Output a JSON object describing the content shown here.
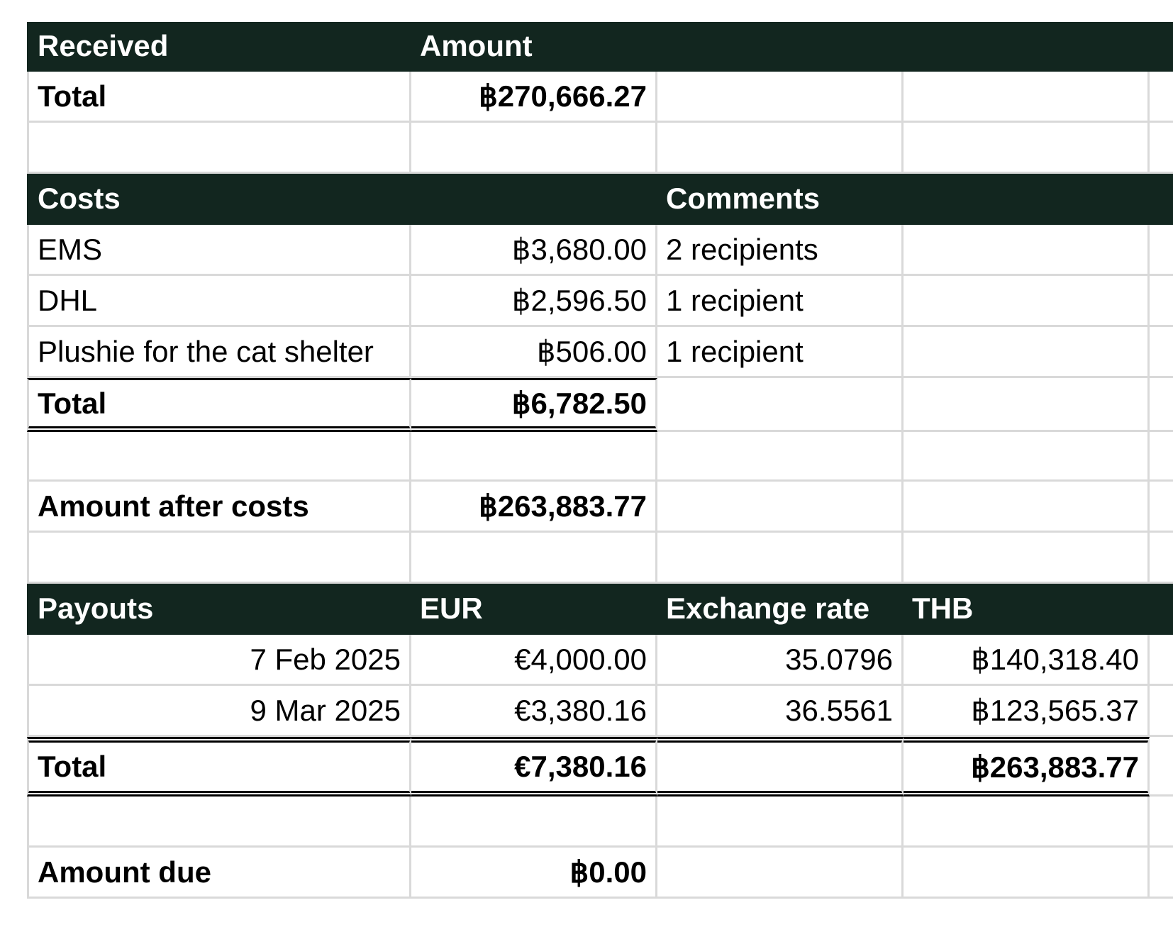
{
  "theme": {
    "header_bg": "#12261f",
    "grid": "#d9d9d9"
  },
  "received": {
    "header": {
      "col1": "Received",
      "col2": "Amount"
    },
    "total": {
      "label": "Total",
      "amount": "฿270,666.27"
    }
  },
  "costs": {
    "header": {
      "col1": "Costs",
      "col3": "Comments"
    },
    "items": [
      {
        "label": "EMS",
        "amount": "฿3,680.00",
        "comment": "2 recipients"
      },
      {
        "label": "DHL",
        "amount": "฿2,596.50",
        "comment": "1 recipient"
      },
      {
        "label": "Plushie for the cat shelter",
        "amount": "฿506.00",
        "comment": "1 recipient"
      }
    ],
    "total": {
      "label": "Total",
      "amount": "฿6,782.50"
    }
  },
  "after_costs": {
    "label": "Amount after costs",
    "amount": "฿263,883.77"
  },
  "payouts": {
    "header": {
      "col1": "Payouts",
      "col2": "EUR",
      "col3": "Exchange rate",
      "col4": "THB"
    },
    "items": [
      {
        "date": "7 Feb 2025",
        "eur": "€4,000.00",
        "rate": "35.0796",
        "thb": "฿140,318.40"
      },
      {
        "date": "9 Mar 2025",
        "eur": "€3,380.16",
        "rate": "36.5561",
        "thb": "฿123,565.37"
      }
    ],
    "total": {
      "label": "Total",
      "eur": "€7,380.16",
      "thb": "฿263,883.77"
    }
  },
  "amount_due": {
    "label": "Amount due",
    "amount": "฿0.00"
  }
}
